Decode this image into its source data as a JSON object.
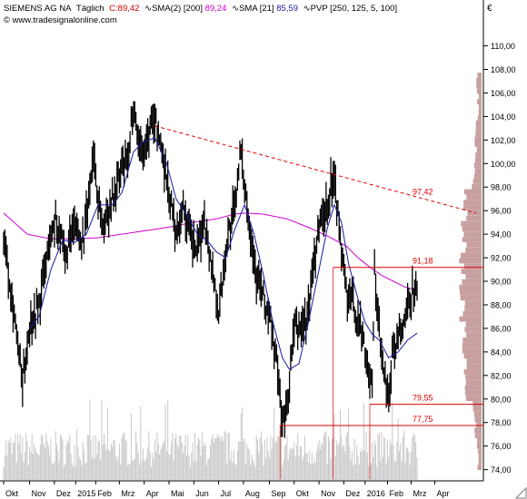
{
  "header": {
    "symbol": "SIEMENS AG NA",
    "period": "Täglich",
    "close_label": "C:",
    "close_value": "89,42",
    "sma200_label": "SMA(2) [200]",
    "sma200_value": "89,24",
    "sma21_label": "SMA [21]",
    "sma21_value": "85,59",
    "pvp_label": "PVP [250, 125, 5, 100]",
    "copyright": "© www.tradesignalonline.com",
    "currency": "€"
  },
  "colors": {
    "price": "#000000",
    "sma200": "#cc00cc",
    "sma21": "#1a1aa0",
    "trendline": "#e00000",
    "level": "#e00000",
    "volume": "#c8c8c8",
    "profile": "#c8a0a0"
  },
  "chart_data": {
    "type": "line",
    "title": "SIEMENS AG NA",
    "ylim": [
      73.2,
      112.2
    ],
    "y_ticks": [
      "74,00",
      "76,00",
      "78,00",
      "80,00",
      "82,00",
      "84,00",
      "86,00",
      "88,00",
      "90,00",
      "92,00",
      "94,00",
      "96,00",
      "98,00",
      "100,00",
      "102,00",
      "104,00",
      "106,00",
      "108,00",
      "110,00"
    ],
    "y_tick_values": [
      74,
      76,
      78,
      80,
      82,
      84,
      86,
      88,
      90,
      92,
      94,
      96,
      98,
      100,
      102,
      104,
      106,
      108,
      110
    ],
    "x_labels": [
      "Okt",
      "Nov",
      "Dez",
      "2015",
      "Feb",
      "Mrz",
      "Apr",
      "Mai",
      "Jun",
      "Jul",
      "Aug",
      "Sep",
      "Okt",
      "Nov",
      "Dez",
      "2016",
      "Feb",
      "Mrz",
      "Apr"
    ],
    "x_label_index": [
      0,
      22,
      43,
      61,
      78,
      98,
      119,
      140,
      161,
      182,
      203,
      225,
      246,
      267,
      288,
      306,
      325,
      345,
      365
    ],
    "series": [
      {
        "name": "SIEMENS AG NA",
        "anchors": [
          [
            0,
            94.0
          ],
          [
            10,
            86.5
          ],
          [
            16,
            81.0
          ],
          [
            22,
            86.5
          ],
          [
            30,
            88.0
          ],
          [
            38,
            93.0
          ],
          [
            44,
            95.5
          ],
          [
            52,
            92.0
          ],
          [
            60,
            94.5
          ],
          [
            68,
            93.5
          ],
          [
            72,
            97.0
          ],
          [
            76,
            101.0
          ],
          [
            80,
            97.0
          ],
          [
            84,
            94.5
          ],
          [
            90,
            96.5
          ],
          [
            100,
            99.5
          ],
          [
            106,
            100.5
          ],
          [
            110,
            105.5
          ],
          [
            114,
            102.0
          ],
          [
            118,
            101.0
          ],
          [
            124,
            103.0
          ],
          [
            128,
            104.0
          ],
          [
            134,
            101.0
          ],
          [
            140,
            97.5
          ],
          [
            146,
            94.0
          ],
          [
            152,
            96.5
          ],
          [
            158,
            93.5
          ],
          [
            164,
            92.5
          ],
          [
            170,
            95.5
          ],
          [
            176,
            91.5
          ],
          [
            182,
            87.5
          ],
          [
            186,
            90.5
          ],
          [
            190,
            94.0
          ],
          [
            196,
            96.5
          ],
          [
            200,
            101.0
          ],
          [
            204,
            98.5
          ],
          [
            208,
            95.0
          ],
          [
            214,
            90.5
          ],
          [
            220,
            88.5
          ],
          [
            226,
            86.5
          ],
          [
            230,
            84.0
          ],
          [
            235,
            79.0
          ],
          [
            238,
            78.0
          ],
          [
            242,
            81.5
          ],
          [
            246,
            86.0
          ],
          [
            252,
            86.0
          ],
          [
            258,
            87.5
          ],
          [
            262,
            91.5
          ],
          [
            268,
            95.0
          ],
          [
            274,
            96.5
          ],
          [
            280,
            99.5
          ],
          [
            284,
            94.5
          ],
          [
            288,
            91.0
          ],
          [
            292,
            88.0
          ],
          [
            296,
            88.5
          ],
          [
            300,
            86.5
          ],
          [
            304,
            85.5
          ],
          [
            308,
            83.0
          ],
          [
            312,
            80.5
          ],
          [
            314,
            91.0
          ],
          [
            318,
            85.5
          ],
          [
            322,
            82.0
          ],
          [
            326,
            79.8
          ],
          [
            330,
            84.5
          ],
          [
            336,
            85.5
          ],
          [
            342,
            87.5
          ],
          [
            346,
            89.5
          ],
          [
            350,
            89.42
          ]
        ]
      },
      {
        "name": "SMA(2) [200]",
        "anchors": [
          [
            0,
            95.8
          ],
          [
            20,
            94.0
          ],
          [
            40,
            93.6
          ],
          [
            60,
            93.6
          ],
          [
            80,
            93.7
          ],
          [
            100,
            94.0
          ],
          [
            120,
            94.3
          ],
          [
            140,
            94.6
          ],
          [
            160,
            95.0
          ],
          [
            180,
            95.3
          ],
          [
            195,
            95.7
          ],
          [
            205,
            95.8
          ],
          [
            220,
            95.7
          ],
          [
            240,
            95.3
          ],
          [
            260,
            94.5
          ],
          [
            275,
            93.8
          ],
          [
            290,
            93.0
          ],
          [
            300,
            92.0
          ],
          [
            310,
            91.2
          ],
          [
            320,
            90.5
          ],
          [
            330,
            90.0
          ],
          [
            340,
            89.5
          ],
          [
            350,
            89.24
          ]
        ]
      },
      {
        "name": "SMA [21]",
        "anchors": [
          [
            22,
            86.0
          ],
          [
            30,
            87.0
          ],
          [
            40,
            91.0
          ],
          [
            50,
            93.5
          ],
          [
            60,
            93.3
          ],
          [
            70,
            94.0
          ],
          [
            80,
            96.5
          ],
          [
            92,
            96.5
          ],
          [
            100,
            97.5
          ],
          [
            110,
            101.0
          ],
          [
            118,
            101.8
          ],
          [
            128,
            102.2
          ],
          [
            138,
            100.0
          ],
          [
            146,
            97.0
          ],
          [
            156,
            95.5
          ],
          [
            164,
            94.0
          ],
          [
            172,
            93.5
          ],
          [
            180,
            92.5
          ],
          [
            188,
            92.0
          ],
          [
            196,
            94.5
          ],
          [
            204,
            96.5
          ],
          [
            212,
            94.0
          ],
          [
            220,
            90.5
          ],
          [
            228,
            86.5
          ],
          [
            236,
            83.5
          ],
          [
            242,
            82.5
          ],
          [
            250,
            83.0
          ],
          [
            258,
            86.5
          ],
          [
            266,
            90.5
          ],
          [
            274,
            94.5
          ],
          [
            280,
            96.5
          ],
          [
            286,
            95.0
          ],
          [
            292,
            91.5
          ],
          [
            300,
            88.5
          ],
          [
            306,
            86.5
          ],
          [
            312,
            85.5
          ],
          [
            318,
            85.0
          ],
          [
            326,
            83.5
          ],
          [
            334,
            84.0
          ],
          [
            342,
            85.0
          ],
          [
            350,
            85.59
          ]
        ]
      }
    ],
    "volume_note": "",
    "horizontal_levels": [
      {
        "label": "91,18",
        "value": 91.18,
        "from_index": 279
      },
      {
        "label": "79,55",
        "value": 79.55,
        "from_index": 310
      },
      {
        "label": "77,75",
        "value": 77.75,
        "from_index": 234
      }
    ],
    "trendline": {
      "label": "97,42",
      "points": [
        [
          128,
          103.2
        ],
        [
          400,
          95.8
        ]
      ]
    },
    "grid": false,
    "legend": "top-left"
  }
}
